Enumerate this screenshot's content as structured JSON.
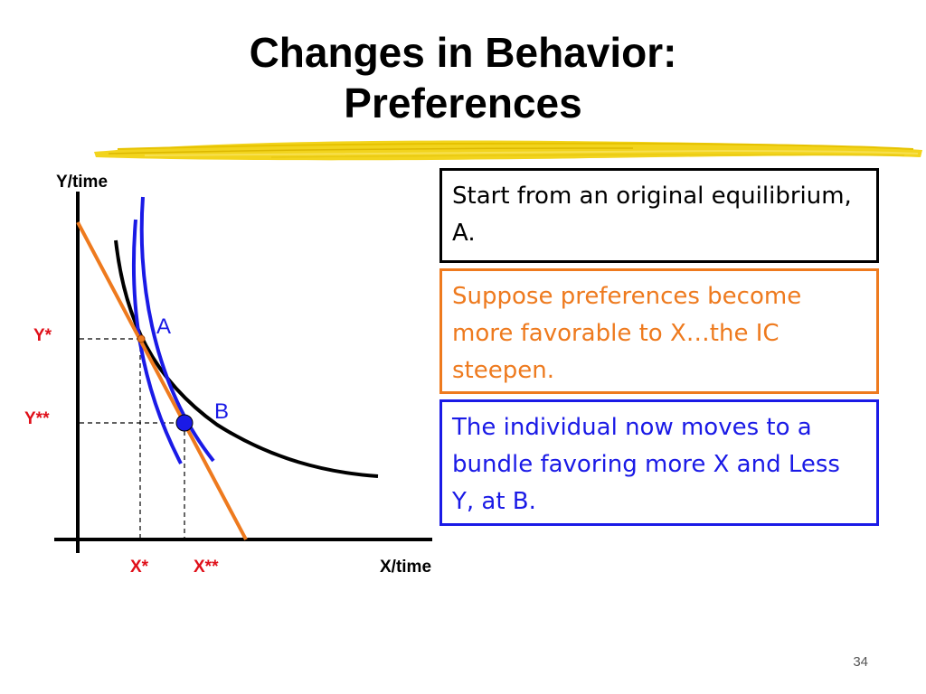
{
  "slide": {
    "title_line1": "Changes in Behavior:",
    "title_line2": "Preferences",
    "page_number": "34"
  },
  "diagram": {
    "y_axis_label": "Y/time",
    "x_axis_label": "X/time",
    "point_a_label": "A",
    "point_b_label": "B",
    "y_star_label": "Y*",
    "y_double_star_label": "Y**",
    "x_star_label": "X*",
    "x_double_star_label": "X**",
    "colors": {
      "budget_line": "#ee7a1e",
      "new_indifference_curves": "#1a1ae6",
      "original_indifference_curve": "#000000",
      "equilibrium_labels": "#e0101a"
    }
  },
  "text_boxes": {
    "start": "Start from an original equilibrium, A.",
    "preferences": "Suppose preferences become more favorable to X…the IC steepen.",
    "moves": "The individual now moves to a bundle favoring more X and Less Y, at B."
  }
}
